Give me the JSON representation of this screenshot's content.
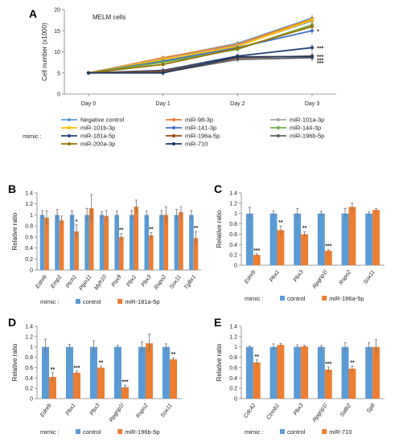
{
  "colors": {
    "control": "#5B9BD5",
    "treated": "#ED7D31",
    "axis": "#7f7f7f",
    "error": "#6f6f6f"
  },
  "chart_data": [
    {
      "id": "A",
      "type": "line",
      "panel_label": "A",
      "title": "MELM cells",
      "xlabel": "",
      "ylabel": "Cell number (x1000)",
      "categories": [
        "Day 0",
        "Day 1",
        "Day 2",
        "Day 3"
      ],
      "ylim": [
        0,
        20
      ],
      "yticks": [
        0,
        5,
        10,
        15,
        20
      ],
      "legend_prefix": "mimic :",
      "series": [
        {
          "name": "Negative control",
          "color": "#5B9BD5",
          "values": [
            5,
            8.5,
            12.0,
            18.0
          ],
          "sig": ""
        },
        {
          "name": "miR-98-3p",
          "color": "#ED7D31",
          "values": [
            5,
            8.6,
            11.8,
            17.8
          ],
          "sig": ""
        },
        {
          "name": "miR-101a-3p",
          "color": "#A5A5A5",
          "values": [
            5,
            8.3,
            11.5,
            17.3
          ],
          "sig": ""
        },
        {
          "name": "miR-101b-3p",
          "color": "#FFC000",
          "values": [
            5,
            8.2,
            11.3,
            17.6
          ],
          "sig": ""
        },
        {
          "name": "miR-141-3p",
          "color": "#4472C4",
          "values": [
            5,
            7.8,
            11.0,
            15.0
          ],
          "sig": "*"
        },
        {
          "name": "miR-144-3p",
          "color": "#70AD47",
          "values": [
            5,
            7.5,
            10.6,
            16.4
          ],
          "sig": ""
        },
        {
          "name": "miR-181a-5p",
          "color": "#264478",
          "values": [
            5,
            5.6,
            9.0,
            11.0
          ],
          "sig": "***"
        },
        {
          "name": "miR-196a-5p",
          "color": "#9E480E",
          "values": [
            5,
            5.3,
            8.6,
            9.0
          ],
          "sig": "***"
        },
        {
          "name": "miR-196b-5p",
          "color": "#636363",
          "values": [
            5,
            5.1,
            8.2,
            8.6
          ],
          "sig": "***"
        },
        {
          "name": "miR-200a-3p",
          "color": "#997300",
          "values": [
            5,
            7.0,
            10.8,
            16.0
          ],
          "sig": ""
        },
        {
          "name": "miR-710",
          "color": "#203864",
          "values": [
            5,
            5.0,
            8.8,
            8.9
          ],
          "sig": "***"
        }
      ]
    },
    {
      "id": "B",
      "type": "bar",
      "panel_label": "B",
      "ylabel": "Relative ratio",
      "ylim": [
        0,
        1.4
      ],
      "yticks": [
        0,
        0.2,
        0.4,
        0.6,
        0.8,
        1,
        1.2,
        1.4
      ],
      "categories": [
        "Ednrb",
        "Emp1",
        "Ptch1",
        "Ptpn11",
        "Myh10",
        "Pax9",
        "Pbx1",
        "Pbx3",
        "Rspo2",
        "Sox11",
        "Tgfbr1"
      ],
      "series": [
        {
          "name": "control",
          "values": [
            1,
            1,
            1,
            1,
            1,
            1,
            1,
            1,
            1,
            1,
            1
          ],
          "errors": [
            0.08,
            0.1,
            0.08,
            0.12,
            0.06,
            0.07,
            0.08,
            0.07,
            0.08,
            0.1,
            0.08
          ]
        },
        {
          "name": "miR-181a-5p",
          "values": [
            0.95,
            0.9,
            0.7,
            1.12,
            0.98,
            0.6,
            1.15,
            0.63,
            1.0,
            1.05,
            0.58
          ],
          "errors": [
            0.12,
            0.08,
            0.12,
            0.25,
            0.1,
            0.06,
            0.12,
            0.05,
            0.15,
            0.1,
            0.12
          ]
        }
      ],
      "significance": [
        "",
        "",
        "*",
        "",
        "",
        "**",
        "",
        "**",
        "",
        "",
        "**"
      ],
      "legend_prefix": "mimic :"
    },
    {
      "id": "C",
      "type": "bar",
      "panel_label": "C",
      "ylabel": "Relative ratio",
      "ylim": [
        0,
        1.4
      ],
      "yticks": [
        0,
        0.2,
        0.4,
        0.6,
        0.8,
        1,
        1.2,
        1.4
      ],
      "categories": [
        "Ednrb",
        "Pbx1",
        "Pbx3",
        "Rpgrip1l",
        "Rspo2",
        "Sox11"
      ],
      "series": [
        {
          "name": "control",
          "values": [
            1,
            1,
            1,
            1,
            1,
            1
          ],
          "errors": [
            0.12,
            0.05,
            0.1,
            0.04,
            0.1,
            0.04
          ]
        },
        {
          "name": "miR-196a-5p",
          "values": [
            0.2,
            0.68,
            0.6,
            0.28,
            1.13,
            1.07
          ],
          "errors": [
            0.02,
            0.08,
            0.05,
            0.02,
            0.07,
            0.03
          ]
        }
      ],
      "significance": [
        "***",
        "**",
        "**",
        "***",
        "",
        ""
      ],
      "legend_prefix": "mimic :"
    },
    {
      "id": "D",
      "type": "bar",
      "panel_label": "D",
      "ylabel": "Relative ratio",
      "ylim": [
        0,
        1.4
      ],
      "yticks": [
        0,
        0.2,
        0.4,
        0.6,
        0.8,
        1,
        1.2,
        1.4
      ],
      "categories": [
        "Ednrb",
        "Pbx1",
        "Pbx3",
        "Rpgrip1l",
        "Rspo2",
        "Sox11"
      ],
      "series": [
        {
          "name": "control",
          "values": [
            1,
            1,
            1,
            1,
            1,
            1
          ],
          "errors": [
            0.15,
            0.05,
            0.12,
            0.03,
            0.1,
            0.06
          ]
        },
        {
          "name": "miR-196b-5p",
          "values": [
            0.42,
            0.5,
            0.6,
            0.22,
            1.07,
            0.76
          ],
          "errors": [
            0.08,
            0.03,
            0.03,
            0.04,
            0.18,
            0.03
          ]
        }
      ],
      "significance": [
        "**",
        "***",
        "**",
        "***",
        "",
        "**"
      ],
      "legend_prefix": "mimic :"
    },
    {
      "id": "E",
      "type": "bar",
      "panel_label": "E",
      "ylabel": "Relative ratio",
      "ylim": [
        0,
        1.4
      ],
      "yticks": [
        0,
        0.2,
        0.4,
        0.6,
        0.8,
        1,
        1.2,
        1.4
      ],
      "categories": [
        "Cdc42",
        "Ctnnb1",
        "Pbx3",
        "Rpgrip1l",
        "Satb2",
        "Sp8"
      ],
      "series": [
        {
          "name": "control",
          "values": [
            1,
            1,
            1,
            1,
            1,
            1
          ],
          "errors": [
            0.02,
            0.06,
            0.04,
            0.03,
            0.08,
            0.08
          ]
        },
        {
          "name": "miR-710",
          "values": [
            0.7,
            1.04,
            1.01,
            0.56,
            0.58,
            1.0
          ],
          "errors": [
            0.05,
            0.03,
            0.02,
            0.05,
            0.05,
            0.14
          ]
        }
      ],
      "significance": [
        "**",
        "",
        "",
        "***",
        "**",
        ""
      ],
      "legend_prefix": "mimic :"
    }
  ]
}
